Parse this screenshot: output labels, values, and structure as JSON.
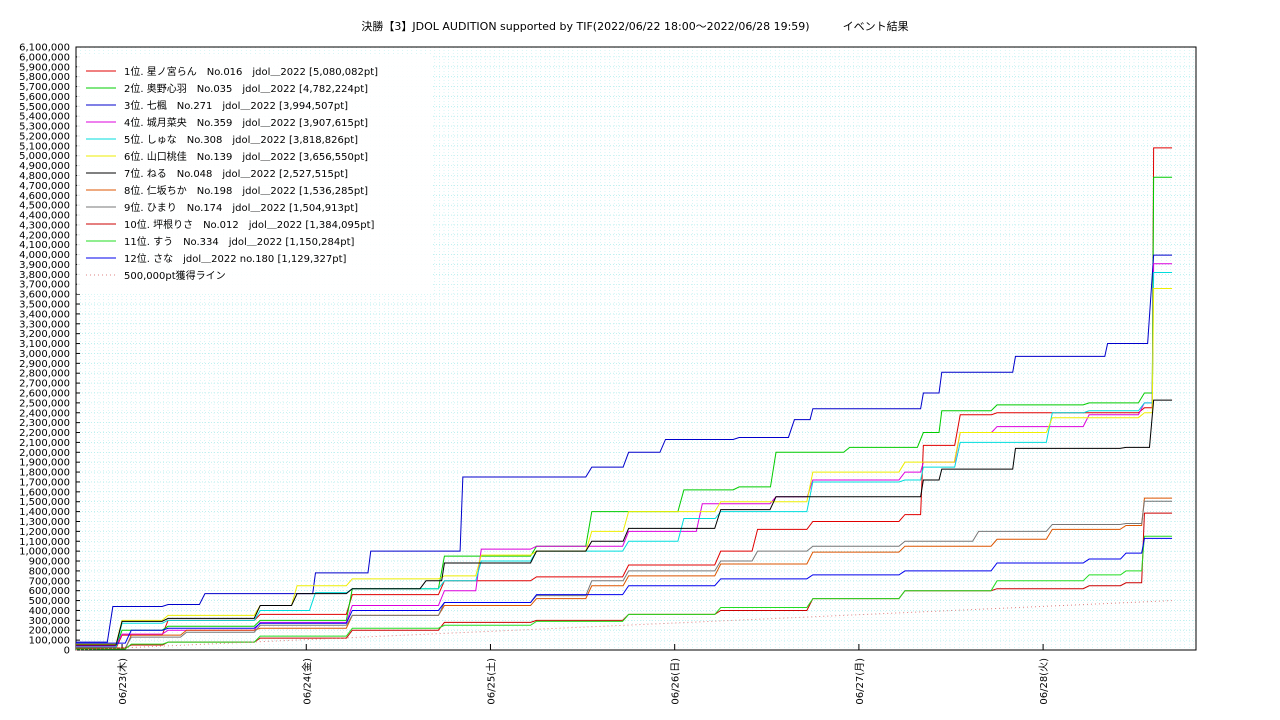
{
  "chart_data": {
    "type": "line",
    "title": "決勝【3】JDOL AUDITION supported by TIF(2022/06/22 18:00～2022/06/28 19:59)　　　イベント結果",
    "xlabel": "",
    "ylabel": "",
    "x_ticks": [
      "06/23(木)",
      "06/24(金)",
      "06/25(土)",
      "06/26(日)",
      "06/27(月)",
      "06/28(火)"
    ],
    "x_range_days": [
      0,
      6.08
    ],
    "ylim": [
      0,
      6100000
    ],
    "y_tick_step": 100000,
    "y_tick_labels": [
      "0",
      "100,000",
      "200,000",
      "300,000",
      "400,000",
      "500,000",
      "600,000",
      "700,000",
      "800,000",
      "900,000",
      "1,000,000",
      "1,100,000",
      "1,200,000",
      "1,300,000",
      "1,400,000",
      "1,500,000",
      "1,600,000",
      "1,700,000",
      "1,800,000",
      "1,900,000",
      "2,000,000",
      "2,100,000",
      "2,200,000",
      "2,300,000",
      "2,400,000",
      "2,500,000",
      "2,600,000",
      "2,700,000",
      "2,800,000",
      "2,900,000",
      "3,000,000",
      "3,100,000",
      "3,200,000",
      "3,300,000",
      "3,400,000",
      "3,500,000",
      "3,600,000",
      "3,700,000",
      "3,800,000",
      "3,900,000",
      "4,000,000",
      "4,100,000",
      "4,200,000",
      "4,300,000",
      "4,400,000",
      "4,500,000",
      "4,600,000",
      "4,700,000",
      "4,800,000",
      "4,900,000",
      "5,000,000",
      "5,100,000",
      "5,200,000",
      "5,300,000",
      "5,400,000",
      "5,500,000",
      "5,600,000",
      "5,700,000",
      "5,800,000",
      "5,900,000",
      "6,000,000",
      "6,100,000"
    ],
    "grid": true,
    "legend_position": "top-left",
    "series": [
      {
        "name": " 1位. 星ノ宮らん　No.016　jdol＿2022 [5,080,082pt]",
        "color": "#e00000",
        "points": [
          [
            0,
            20000
          ],
          [
            0.25,
            150000
          ],
          [
            0.5,
            300000
          ],
          [
            1,
            360000
          ],
          [
            1.5,
            560000
          ],
          [
            2,
            700000
          ],
          [
            2.5,
            740000
          ],
          [
            3,
            860000
          ],
          [
            3.5,
            1000000
          ],
          [
            3.7,
            1220000
          ],
          [
            4,
            1300000
          ],
          [
            4.5,
            1370000
          ],
          [
            4.6,
            2070000
          ],
          [
            4.8,
            2380000
          ],
          [
            5,
            2400000
          ],
          [
            5.5,
            2400000
          ],
          [
            5.8,
            2450000
          ],
          [
            5.85,
            5080082
          ],
          [
            5.95,
            5080082
          ]
        ]
      },
      {
        "name": " 2位. 奥野心羽　No.035　jdol＿2022 [4,782,224pt]",
        "color": "#00cc00",
        "points": [
          [
            0,
            30000
          ],
          [
            0.25,
            200000
          ],
          [
            0.5,
            240000
          ],
          [
            1,
            300000
          ],
          [
            1.5,
            620000
          ],
          [
            2,
            950000
          ],
          [
            2.5,
            1050000
          ],
          [
            2.8,
            1400000
          ],
          [
            3.3,
            1620000
          ],
          [
            3.6,
            1650000
          ],
          [
            3.8,
            2000000
          ],
          [
            4.2,
            2050000
          ],
          [
            4.6,
            2200000
          ],
          [
            4.7,
            2420000
          ],
          [
            5,
            2480000
          ],
          [
            5.5,
            2500000
          ],
          [
            5.8,
            2600000
          ],
          [
            5.85,
            4782224
          ],
          [
            5.95,
            4782224
          ]
        ]
      },
      {
        "name": " 3位. 七楓　No.271　jdol＿2022 [3,994,507pt]",
        "color": "#0000cc",
        "points": [
          [
            0,
            80000
          ],
          [
            0.2,
            440000
          ],
          [
            0.5,
            460000
          ],
          [
            0.7,
            570000
          ],
          [
            1.2,
            570000
          ],
          [
            1.3,
            780000
          ],
          [
            1.5,
            780000
          ],
          [
            1.6,
            1000000
          ],
          [
            2,
            1000000
          ],
          [
            2.1,
            1750000
          ],
          [
            2.5,
            1750000
          ],
          [
            2.8,
            1850000
          ],
          [
            3,
            2000000
          ],
          [
            3.2,
            2130000
          ],
          [
            3.6,
            2150000
          ],
          [
            3.9,
            2330000
          ],
          [
            4,
            2440000
          ],
          [
            4.5,
            2440000
          ],
          [
            4.6,
            2600000
          ],
          [
            4.7,
            2810000
          ],
          [
            5,
            2810000
          ],
          [
            5.1,
            2970000
          ],
          [
            5.5,
            2970000
          ],
          [
            5.6,
            3100000
          ],
          [
            5.85,
            3994507
          ],
          [
            5.95,
            3994507
          ]
        ]
      },
      {
        "name": " 4位. 城月菜央　No.359　jdol＿2022 [3,907,615pt]",
        "color": "#dd00dd",
        "points": [
          [
            0,
            40000
          ],
          [
            0.25,
            160000
          ],
          [
            0.5,
            200000
          ],
          [
            1,
            280000
          ],
          [
            1.5,
            450000
          ],
          [
            2,
            600000
          ],
          [
            2.2,
            1020000
          ],
          [
            2.5,
            1050000
          ],
          [
            3,
            1200000
          ],
          [
            3.4,
            1480000
          ],
          [
            3.8,
            1550000
          ],
          [
            4,
            1720000
          ],
          [
            4.5,
            1800000
          ],
          [
            4.6,
            1900000
          ],
          [
            4.8,
            2200000
          ],
          [
            5,
            2260000
          ],
          [
            5.5,
            2380000
          ],
          [
            5.8,
            2500000
          ],
          [
            5.85,
            3907615
          ],
          [
            5.95,
            3907615
          ]
        ]
      },
      {
        "name": " 5位. しゅな　No.308　jdol＿2022 [3,818,826pt]",
        "color": "#00dddd",
        "points": [
          [
            0,
            30000
          ],
          [
            0.25,
            270000
          ],
          [
            0.5,
            300000
          ],
          [
            1,
            400000
          ],
          [
            1.3,
            580000
          ],
          [
            1.5,
            620000
          ],
          [
            2,
            700000
          ],
          [
            2.2,
            900000
          ],
          [
            2.5,
            1000000
          ],
          [
            3,
            1100000
          ],
          [
            3.3,
            1330000
          ],
          [
            3.5,
            1400000
          ],
          [
            4,
            1700000
          ],
          [
            4.5,
            1720000
          ],
          [
            4.6,
            1850000
          ],
          [
            4.8,
            2100000
          ],
          [
            5,
            2100000
          ],
          [
            5.3,
            2400000
          ],
          [
            5.5,
            2420000
          ],
          [
            5.8,
            2500000
          ],
          [
            5.85,
            3818826
          ],
          [
            5.95,
            3818826
          ]
        ]
      },
      {
        "name": " 6位. 山口桃佳　No.139　jdol＿2022 [3,656,550pt]",
        "color": "#eeee00",
        "points": [
          [
            0,
            60000
          ],
          [
            0.25,
            300000
          ],
          [
            0.5,
            350000
          ],
          [
            1,
            450000
          ],
          [
            1.2,
            650000
          ],
          [
            1.5,
            720000
          ],
          [
            2,
            750000
          ],
          [
            2.2,
            960000
          ],
          [
            2.5,
            1000000
          ],
          [
            2.8,
            1200000
          ],
          [
            3,
            1400000
          ],
          [
            3.5,
            1500000
          ],
          [
            4,
            1800000
          ],
          [
            4.5,
            1900000
          ],
          [
            4.8,
            2200000
          ],
          [
            5,
            2200000
          ],
          [
            5.3,
            2350000
          ],
          [
            5.8,
            2400000
          ],
          [
            5.85,
            3656550
          ],
          [
            5.95,
            3656550
          ]
        ]
      },
      {
        "name": " 7位. ねる　No.048　jdol＿2022 [2,527,515pt]",
        "color": "#000000",
        "points": [
          [
            0,
            50000
          ],
          [
            0.25,
            290000
          ],
          [
            0.5,
            320000
          ],
          [
            1,
            450000
          ],
          [
            1.2,
            570000
          ],
          [
            1.5,
            620000
          ],
          [
            1.9,
            700000
          ],
          [
            2,
            880000
          ],
          [
            2.5,
            1000000
          ],
          [
            2.8,
            1100000
          ],
          [
            3,
            1230000
          ],
          [
            3.5,
            1420000
          ],
          [
            3.8,
            1550000
          ],
          [
            4.5,
            1550000
          ],
          [
            4.6,
            1720000
          ],
          [
            4.7,
            1830000
          ],
          [
            5,
            1830000
          ],
          [
            5.1,
            2040000
          ],
          [
            5.7,
            2050000
          ],
          [
            5.85,
            2527515
          ],
          [
            5.95,
            2527515
          ]
        ]
      },
      {
        "name": " 8位. 仁坂ちか　No.198　jdol＿2022 [1,536,285pt]",
        "color": "#dd5500",
        "points": [
          [
            0,
            10000
          ],
          [
            0.3,
            150000
          ],
          [
            0.6,
            200000
          ],
          [
            1,
            220000
          ],
          [
            1.5,
            350000
          ],
          [
            2,
            450000
          ],
          [
            2.5,
            520000
          ],
          [
            2.8,
            650000
          ],
          [
            3,
            750000
          ],
          [
            3.5,
            870000
          ],
          [
            4,
            990000
          ],
          [
            4.5,
            1050000
          ],
          [
            5,
            1120000
          ],
          [
            5.3,
            1220000
          ],
          [
            5.7,
            1260000
          ],
          [
            5.8,
            1536285
          ],
          [
            5.95,
            1536285
          ]
        ]
      },
      {
        "name": " 9位. ひまり　No.174　jdol＿2022 [1,504,913pt]",
        "color": "#777777",
        "points": [
          [
            0,
            20000
          ],
          [
            0.3,
            130000
          ],
          [
            0.6,
            180000
          ],
          [
            1,
            250000
          ],
          [
            1.5,
            350000
          ],
          [
            2,
            480000
          ],
          [
            2.5,
            550000
          ],
          [
            2.8,
            700000
          ],
          [
            3,
            800000
          ],
          [
            3.5,
            900000
          ],
          [
            3.7,
            1000000
          ],
          [
            4,
            1050000
          ],
          [
            4.5,
            1100000
          ],
          [
            4.9,
            1200000
          ],
          [
            5.3,
            1270000
          ],
          [
            5.7,
            1280000
          ],
          [
            5.8,
            1504913
          ],
          [
            5.95,
            1504913
          ]
        ]
      },
      {
        "name": "10位. 坪根りさ　No.012　jdol＿2022 [1,384,095pt]",
        "color": "#cc0000",
        "points": [
          [
            0,
            20000
          ],
          [
            0.3,
            50000
          ],
          [
            0.5,
            80000
          ],
          [
            1,
            120000
          ],
          [
            1.5,
            200000
          ],
          [
            2,
            280000
          ],
          [
            2.5,
            300000
          ],
          [
            3,
            360000
          ],
          [
            3.5,
            400000
          ],
          [
            4,
            520000
          ],
          [
            4.5,
            600000
          ],
          [
            5,
            620000
          ],
          [
            5.5,
            650000
          ],
          [
            5.7,
            680000
          ],
          [
            5.8,
            1384095
          ],
          [
            5.95,
            1384095
          ]
        ]
      },
      {
        "name": "11位. すう　No.334　jdol＿2022 [1,150,284pt]",
        "color": "#22dd22",
        "points": [
          [
            0,
            10000
          ],
          [
            0.3,
            60000
          ],
          [
            0.5,
            80000
          ],
          [
            1,
            140000
          ],
          [
            1.5,
            220000
          ],
          [
            2,
            250000
          ],
          [
            2.5,
            290000
          ],
          [
            3,
            360000
          ],
          [
            3.5,
            430000
          ],
          [
            4,
            520000
          ],
          [
            4.5,
            600000
          ],
          [
            5,
            700000
          ],
          [
            5.5,
            760000
          ],
          [
            5.7,
            800000
          ],
          [
            5.8,
            1150284
          ],
          [
            5.95,
            1150284
          ]
        ]
      },
      {
        "name": "12位. さな　jdol＿2022 no.180 [1,129,327pt]",
        "color": "#0000ee",
        "points": [
          [
            0,
            70000
          ],
          [
            0.3,
            200000
          ],
          [
            0.5,
            220000
          ],
          [
            1,
            270000
          ],
          [
            1.5,
            400000
          ],
          [
            2,
            480000
          ],
          [
            2.5,
            560000
          ],
          [
            3,
            650000
          ],
          [
            3.5,
            720000
          ],
          [
            4,
            760000
          ],
          [
            4.5,
            800000
          ],
          [
            5,
            880000
          ],
          [
            5.5,
            920000
          ],
          [
            5.7,
            980000
          ],
          [
            5.8,
            1129327
          ],
          [
            5.95,
            1129327
          ]
        ]
      },
      {
        "name": "500,000pt獲得ライン",
        "color": "#e08080",
        "dashed": true,
        "points": [
          [
            0,
            0
          ],
          [
            5.95,
            500000
          ]
        ]
      }
    ]
  }
}
